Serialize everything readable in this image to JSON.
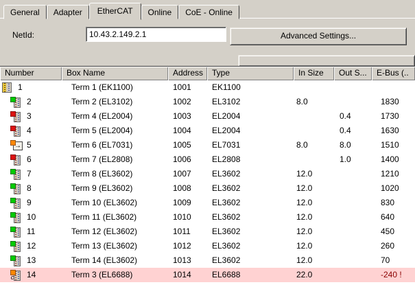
{
  "tabs": {
    "items": [
      {
        "label": "General",
        "active": false
      },
      {
        "label": "Adapter",
        "active": false
      },
      {
        "label": "EtherCAT",
        "active": true
      },
      {
        "label": "Online",
        "active": false
      },
      {
        "label": "CoE - Online",
        "active": false
      }
    ]
  },
  "form": {
    "netid_label": "NetId:",
    "netid_value": "10.43.2.149.2.1",
    "advanced_button": "Advanced Settings..."
  },
  "colors": {
    "dialog_bg": "#d4d0c8",
    "highlight_row": "#ffd2d2",
    "error_text": "#8b0000",
    "status_green": "#00cc00",
    "status_red": "#dd1111",
    "status_orange": "#ff8800"
  },
  "table": {
    "columns": [
      "Number",
      "Box Name",
      "Address",
      "Type",
      "In Size",
      "Out S...",
      "E-Bus (.."
    ],
    "rows": [
      {
        "number": "1",
        "name": "Term 1 (EK1100)",
        "address": "1001",
        "type": "EK1100",
        "in_size": "",
        "out_size": "",
        "ebus": "",
        "letter": "",
        "status": "none",
        "glyph": "coupler",
        "indent": 0,
        "highlight": false
      },
      {
        "number": "2",
        "name": "Term 2 (EL3102)",
        "address": "1002",
        "type": "EL3102",
        "in_size": "8.0",
        "out_size": "",
        "ebus": "1830",
        "letter": "",
        "status": "green",
        "glyph": "terminal",
        "indent": 1,
        "highlight": false
      },
      {
        "number": "3",
        "name": "Term 4 (EL2004)",
        "address": "1003",
        "type": "EL2004",
        "in_size": "",
        "out_size": "0.4",
        "ebus": "1730",
        "letter": "",
        "status": "red",
        "glyph": "terminal",
        "indent": 1,
        "highlight": false
      },
      {
        "number": "4",
        "name": "Term 5 (EL2004)",
        "address": "1004",
        "type": "EL2004",
        "in_size": "",
        "out_size": "0.4",
        "ebus": "1630",
        "letter": "",
        "status": "red",
        "glyph": "terminal",
        "indent": 1,
        "highlight": false
      },
      {
        "number": "5",
        "name": "Term 6 (EL7031)",
        "address": "1005",
        "type": "EL7031",
        "in_size": "8.0",
        "out_size": "8.0",
        "ebus": "1510",
        "letter": "",
        "status": "orange",
        "glyph": "drive",
        "indent": 1,
        "highlight": false
      },
      {
        "number": "6",
        "name": "Term 7 (EL2808)",
        "address": "1006",
        "type": "EL2808",
        "in_size": "",
        "out_size": "1.0",
        "ebus": "1400",
        "letter": "",
        "status": "red",
        "glyph": "terminal",
        "indent": 1,
        "highlight": false
      },
      {
        "number": "7",
        "name": "Term 8 (EL3602)",
        "address": "1007",
        "type": "EL3602",
        "in_size": "12.0",
        "out_size": "",
        "ebus": "1210",
        "letter": "",
        "status": "green",
        "glyph": "terminal",
        "indent": 1,
        "highlight": false
      },
      {
        "number": "8",
        "name": "Term 9 (EL3602)",
        "address": "1008",
        "type": "EL3602",
        "in_size": "12.0",
        "out_size": "",
        "ebus": "1020",
        "letter": "",
        "status": "green",
        "glyph": "terminal",
        "indent": 1,
        "highlight": false
      },
      {
        "number": "9",
        "name": "Term 10 (EL3602)",
        "address": "1009",
        "type": "EL3602",
        "in_size": "12.0",
        "out_size": "",
        "ebus": "830",
        "letter": "",
        "status": "green",
        "glyph": "terminal",
        "indent": 1,
        "highlight": false
      },
      {
        "number": "10",
        "name": "Term 11 (EL3602)",
        "address": "1010",
        "type": "EL3602",
        "in_size": "12.0",
        "out_size": "",
        "ebus": "640",
        "letter": "",
        "status": "green",
        "glyph": "terminal",
        "indent": 1,
        "highlight": false
      },
      {
        "number": "11",
        "name": "Term 12 (EL3602)",
        "address": "1011",
        "type": "EL3602",
        "in_size": "12.0",
        "out_size": "",
        "ebus": "450",
        "letter": "",
        "status": "green",
        "glyph": "terminal",
        "indent": 1,
        "highlight": false
      },
      {
        "number": "12",
        "name": "Term 13 (EL3602)",
        "address": "1012",
        "type": "EL3602",
        "in_size": "12.0",
        "out_size": "",
        "ebus": "260",
        "letter": "",
        "status": "green",
        "glyph": "terminal",
        "indent": 1,
        "highlight": false
      },
      {
        "number": "13",
        "name": "Term 14 (EL3602)",
        "address": "1013",
        "type": "EL3602",
        "in_size": "12.0",
        "out_size": "",
        "ebus": "70",
        "letter": "",
        "status": "green",
        "glyph": "terminal",
        "indent": 1,
        "highlight": false
      },
      {
        "number": "14",
        "name": "Term 3 (EL6688)",
        "address": "1014",
        "type": "EL6688",
        "in_size": "22.0",
        "out_size": "",
        "ebus": "-240 !",
        "letter": "c",
        "status": "orange",
        "glyph": "terminal-c",
        "indent": 1,
        "highlight": true
      }
    ]
  }
}
